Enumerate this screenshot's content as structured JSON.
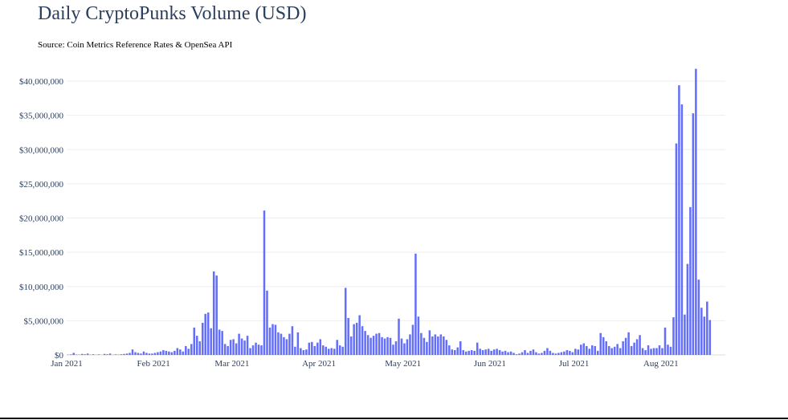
{
  "chart_data": {
    "type": "bar",
    "title": "Daily CryptoPunks Volume (USD)",
    "subtitle": "Source: Coin Metrics Reference Rates & OpenSea API",
    "xlabel": "",
    "ylabel": "",
    "ylim": [
      0,
      42000000
    ],
    "y_ticks": [
      {
        "value": 0,
        "label": "$0"
      },
      {
        "value": 5000000,
        "label": "$5,000,000"
      },
      {
        "value": 10000000,
        "label": "$10,000,000"
      },
      {
        "value": 15000000,
        "label": "$15,000,000"
      },
      {
        "value": 20000000,
        "label": "$20,000,000"
      },
      {
        "value": 25000000,
        "label": "$25,000,000"
      },
      {
        "value": 30000000,
        "label": "$30,000,000"
      },
      {
        "value": 35000000,
        "label": "$35,000,000"
      },
      {
        "value": 40000000,
        "label": "$40,000,000"
      }
    ],
    "x_range": [
      "2021-01-01",
      "2021-08-24"
    ],
    "x_ticks": [
      {
        "date": "2021-01-01",
        "label": "Jan 2021"
      },
      {
        "date": "2021-02-01",
        "label": "Feb 2021"
      },
      {
        "date": "2021-03-01",
        "label": "Mar 2021"
      },
      {
        "date": "2021-04-01",
        "label": "Apr 2021"
      },
      {
        "date": "2021-05-01",
        "label": "May 2021"
      },
      {
        "date": "2021-06-01",
        "label": "Jun 2021"
      },
      {
        "date": "2021-07-01",
        "label": "Jul 2021"
      },
      {
        "date": "2021-08-01",
        "label": "Aug 2021"
      }
    ],
    "grid": true,
    "legend": "none",
    "bar_color": "#636efa",
    "x_start": "2021-01-01",
    "values": [
      50000,
      80000,
      300000,
      60000,
      40000,
      150000,
      100000,
      200000,
      50000,
      100000,
      30000,
      80000,
      20000,
      150000,
      100000,
      200000,
      30000,
      80000,
      50000,
      100000,
      150000,
      200000,
      300000,
      800000,
      400000,
      300000,
      200000,
      500000,
      300000,
      200000,
      200000,
      300000,
      400000,
      500000,
      700000,
      600000,
      500000,
      400000,
      600000,
      1000000,
      800000,
      500000,
      1300000,
      900000,
      1600000,
      4000000,
      2800000,
      2000000,
      4700000,
      6000000,
      6200000,
      3900000,
      12200000,
      11600000,
      3700000,
      3500000,
      1600000,
      1300000,
      2200000,
      2300000,
      1700000,
      3100000,
      2400000,
      2100000,
      2800000,
      1000000,
      1400000,
      1800000,
      1500000,
      1400000,
      21100000,
      9400000,
      4000000,
      4500000,
      4400000,
      3300000,
      3100000,
      2600000,
      2300000,
      3100000,
      4200000,
      1200000,
      3300000,
      1000000,
      700000,
      800000,
      1800000,
      1900000,
      1300000,
      1800000,
      2300000,
      1400000,
      1200000,
      900000,
      1000000,
      900000,
      2200000,
      1400000,
      1200000,
      9800000,
      5400000,
      2700000,
      4500000,
      4700000,
      5800000,
      4200000,
      3500000,
      2900000,
      2500000,
      2800000,
      3100000,
      3200000,
      2600000,
      2400000,
      2600000,
      2500000,
      1500000,
      2000000,
      5300000,
      2400000,
      1700000,
      2300000,
      3000000,
      4400000,
      14800000,
      5600000,
      3200000,
      2500000,
      1900000,
      3600000,
      2700000,
      3000000,
      2700000,
      3000000,
      2700000,
      2200000,
      1400000,
      800000,
      700000,
      1100000,
      2000000,
      700000,
      500000,
      600000,
      700000,
      600000,
      1800000,
      900000,
      700000,
      800000,
      900000,
      600000,
      800000,
      900000,
      700000,
      500000,
      600000,
      400000,
      500000,
      300000,
      100000,
      200000,
      400000,
      700000,
      300000,
      600000,
      800000,
      400000,
      200000,
      300000,
      600000,
      1000000,
      600000,
      300000,
      200000,
      300000,
      400000,
      500000,
      700000,
      600000,
      400000,
      900000,
      800000,
      1500000,
      1700000,
      1300000,
      900000,
      1400000,
      1300000,
      600000,
      3200000,
      2600000,
      2000000,
      1300000,
      1000000,
      1200000,
      1600000,
      1000000,
      2000000,
      2500000,
      3300000,
      1300000,
      1800000,
      2300000,
      2900000,
      1000000,
      700000,
      1400000,
      900000,
      1000000,
      1000000,
      1400000,
      1000000,
      4000000,
      1500000,
      1200000,
      5500000,
      30900000,
      39400000,
      36600000,
      5900000,
      13300000,
      21600000,
      35300000,
      41800000,
      11000000,
      6900000,
      5600000,
      7800000,
      5100000
    ]
  }
}
